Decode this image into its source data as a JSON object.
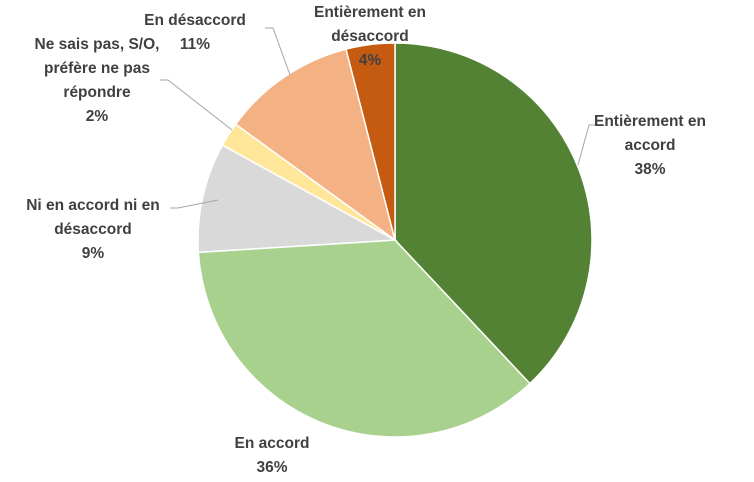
{
  "chart_data": {
    "type": "pie",
    "categories": [
      "Entièrement en accord",
      "En accord",
      "Ni en accord ni en désaccord",
      "Ne sais pas, S/O, préfère ne pas répondre",
      "En désaccord",
      "Entièrement en désaccord"
    ],
    "values": [
      38,
      36,
      9,
      2,
      11,
      4
    ],
    "value_labels": [
      "38%",
      "36%",
      "9%",
      "2%",
      "11%",
      "4%"
    ],
    "colors": [
      "#548235",
      "#a9d18e",
      "#d9d9d9",
      "#ffe699",
      "#f4b183",
      "#c55a11"
    ]
  }
}
